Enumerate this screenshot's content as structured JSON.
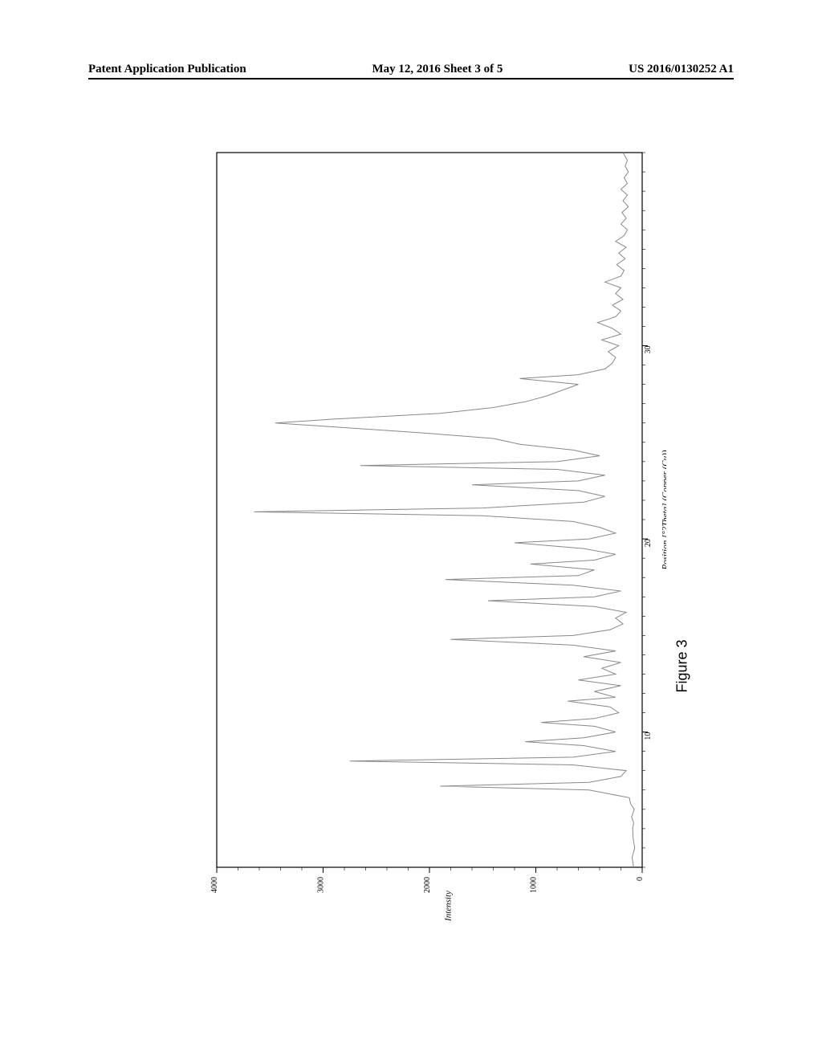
{
  "header": {
    "left": "Patent Application Publication",
    "center": "May 12, 2016  Sheet 3 of 5",
    "right": "US 2016/0130252 A1"
  },
  "figure": {
    "caption": "Figure 3",
    "caption_fontsize": 18
  },
  "chart": {
    "type": "line",
    "xlabel": "Position [°2Theta] (Copper (Cu))",
    "ylabel": "Intensity",
    "xlim": [
      3,
      40
    ],
    "ylim": [
      0,
      4000
    ],
    "xticks": [
      10,
      20,
      30
    ],
    "yticks": [
      0,
      1000,
      2000,
      3000,
      4000
    ],
    "label_fontsize": 11,
    "tick_fontsize": 10,
    "background_color": "#ffffff",
    "line_color": "#888888",
    "line_width": 1,
    "border_color": "#000000",
    "data": [
      {
        "x": 3.0,
        "y": 80
      },
      {
        "x": 3.5,
        "y": 95
      },
      {
        "x": 4.0,
        "y": 70
      },
      {
        "x": 4.5,
        "y": 85
      },
      {
        "x": 5.0,
        "y": 90
      },
      {
        "x": 5.3,
        "y": 80
      },
      {
        "x": 5.6,
        "y": 100
      },
      {
        "x": 6.0,
        "y": 75
      },
      {
        "x": 6.3,
        "y": 110
      },
      {
        "x": 6.6,
        "y": 120
      },
      {
        "x": 7.0,
        "y": 500
      },
      {
        "x": 7.2,
        "y": 1900
      },
      {
        "x": 7.4,
        "y": 500
      },
      {
        "x": 7.7,
        "y": 200
      },
      {
        "x": 8.0,
        "y": 150
      },
      {
        "x": 8.3,
        "y": 650
      },
      {
        "x": 8.5,
        "y": 2750
      },
      {
        "x": 8.7,
        "y": 650
      },
      {
        "x": 9.0,
        "y": 250
      },
      {
        "x": 9.3,
        "y": 550
      },
      {
        "x": 9.5,
        "y": 1100
      },
      {
        "x": 9.7,
        "y": 550
      },
      {
        "x": 10.0,
        "y": 250
      },
      {
        "x": 10.3,
        "y": 450
      },
      {
        "x": 10.5,
        "y": 950
      },
      {
        "x": 10.7,
        "y": 450
      },
      {
        "x": 11.0,
        "y": 220
      },
      {
        "x": 11.3,
        "y": 300
      },
      {
        "x": 11.6,
        "y": 700
      },
      {
        "x": 11.8,
        "y": 250
      },
      {
        "x": 12.1,
        "y": 450
      },
      {
        "x": 12.4,
        "y": 200
      },
      {
        "x": 12.7,
        "y": 600
      },
      {
        "x": 13.0,
        "y": 250
      },
      {
        "x": 13.3,
        "y": 380
      },
      {
        "x": 13.6,
        "y": 200
      },
      {
        "x": 13.9,
        "y": 550
      },
      {
        "x": 14.2,
        "y": 250
      },
      {
        "x": 14.5,
        "y": 650
      },
      {
        "x": 14.8,
        "y": 1800
      },
      {
        "x": 15.0,
        "y": 650
      },
      {
        "x": 15.3,
        "y": 300
      },
      {
        "x": 15.6,
        "y": 180
      },
      {
        "x": 15.9,
        "y": 250
      },
      {
        "x": 16.2,
        "y": 150
      },
      {
        "x": 16.5,
        "y": 450
      },
      {
        "x": 16.8,
        "y": 1450
      },
      {
        "x": 17.0,
        "y": 450
      },
      {
        "x": 17.3,
        "y": 200
      },
      {
        "x": 17.6,
        "y": 650
      },
      {
        "x": 17.9,
        "y": 1850
      },
      {
        "x": 18.1,
        "y": 600
      },
      {
        "x": 18.4,
        "y": 450
      },
      {
        "x": 18.7,
        "y": 1050
      },
      {
        "x": 18.9,
        "y": 450
      },
      {
        "x": 19.2,
        "y": 250
      },
      {
        "x": 19.5,
        "y": 550
      },
      {
        "x": 19.8,
        "y": 1200
      },
      {
        "x": 20.0,
        "y": 500
      },
      {
        "x": 20.3,
        "y": 250
      },
      {
        "x": 20.6,
        "y": 400
      },
      {
        "x": 20.9,
        "y": 650
      },
      {
        "x": 21.2,
        "y": 1500
      },
      {
        "x": 21.4,
        "y": 3650
      },
      {
        "x": 21.6,
        "y": 1500
      },
      {
        "x": 21.9,
        "y": 550
      },
      {
        "x": 22.2,
        "y": 350
      },
      {
        "x": 22.5,
        "y": 600
      },
      {
        "x": 22.8,
        "y": 1600
      },
      {
        "x": 23.0,
        "y": 600
      },
      {
        "x": 23.3,
        "y": 350
      },
      {
        "x": 23.6,
        "y": 800
      },
      {
        "x": 23.8,
        "y": 2650
      },
      {
        "x": 24.0,
        "y": 800
      },
      {
        "x": 24.3,
        "y": 400
      },
      {
        "x": 24.6,
        "y": 650
      },
      {
        "x": 24.9,
        "y": 1150
      },
      {
        "x": 25.2,
        "y": 1400
      },
      {
        "x": 25.5,
        "y": 2100
      },
      {
        "x": 25.8,
        "y": 2900
      },
      {
        "x": 26.0,
        "y": 3450
      },
      {
        "x": 26.2,
        "y": 2900
      },
      {
        "x": 26.5,
        "y": 1900
      },
      {
        "x": 26.8,
        "y": 1400
      },
      {
        "x": 27.1,
        "y": 1100
      },
      {
        "x": 27.4,
        "y": 900
      },
      {
        "x": 27.7,
        "y": 750
      },
      {
        "x": 28.0,
        "y": 600
      },
      {
        "x": 28.3,
        "y": 1150
      },
      {
        "x": 28.5,
        "y": 600
      },
      {
        "x": 28.8,
        "y": 350
      },
      {
        "x": 29.1,
        "y": 280
      },
      {
        "x": 29.4,
        "y": 250
      },
      {
        "x": 29.7,
        "y": 320
      },
      {
        "x": 30.0,
        "y": 220
      },
      {
        "x": 30.3,
        "y": 380
      },
      {
        "x": 30.6,
        "y": 200
      },
      {
        "x": 30.9,
        "y": 280
      },
      {
        "x": 31.2,
        "y": 420
      },
      {
        "x": 31.5,
        "y": 250
      },
      {
        "x": 31.8,
        "y": 200
      },
      {
        "x": 32.1,
        "y": 280
      },
      {
        "x": 32.4,
        "y": 180
      },
      {
        "x": 32.7,
        "y": 250
      },
      {
        "x": 33.0,
        "y": 200
      },
      {
        "x": 33.3,
        "y": 350
      },
      {
        "x": 33.6,
        "y": 200
      },
      {
        "x": 33.9,
        "y": 170
      },
      {
        "x": 34.2,
        "y": 240
      },
      {
        "x": 34.5,
        "y": 160
      },
      {
        "x": 34.8,
        "y": 220
      },
      {
        "x": 35.1,
        "y": 150
      },
      {
        "x": 35.4,
        "y": 250
      },
      {
        "x": 35.7,
        "y": 170
      },
      {
        "x": 36.0,
        "y": 140
      },
      {
        "x": 36.3,
        "y": 200
      },
      {
        "x": 36.6,
        "y": 150
      },
      {
        "x": 36.9,
        "y": 190
      },
      {
        "x": 37.2,
        "y": 130
      },
      {
        "x": 37.5,
        "y": 180
      },
      {
        "x": 37.8,
        "y": 140
      },
      {
        "x": 38.1,
        "y": 200
      },
      {
        "x": 38.4,
        "y": 140
      },
      {
        "x": 38.7,
        "y": 170
      },
      {
        "x": 39.0,
        "y": 130
      },
      {
        "x": 39.3,
        "y": 160
      },
      {
        "x": 39.6,
        "y": 140
      },
      {
        "x": 40.0,
        "y": 180
      }
    ]
  }
}
